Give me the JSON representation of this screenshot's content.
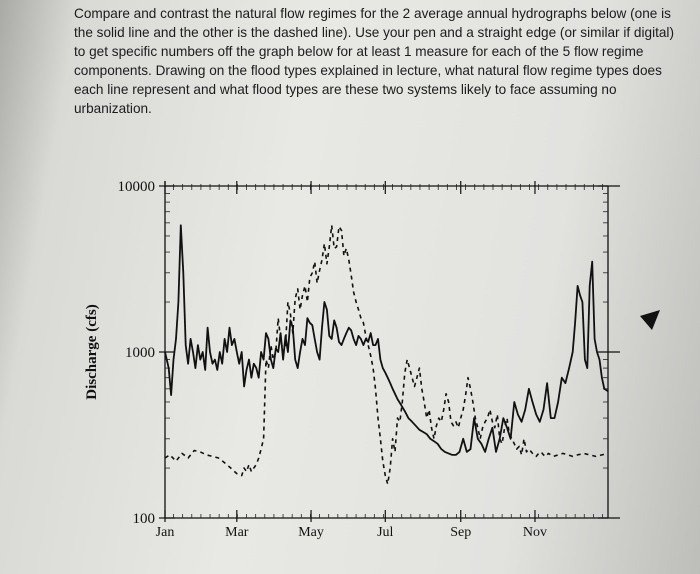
{
  "prompt_text": "Compare and contrast the natural flow regimes for the 2 average annual hydrographs below (one is the solid line and the other is the dashed line). Use your pen and a straight edge (or similar if digital) to get specific numbers off the graph below for at least 1 measure for each of the 5 flow regime components. Drawing on the flood types explained in lecture, what natural flow regime types does each line represent and what flood types are these two systems likely to face assuming no urbanization.",
  "chart_data": {
    "type": "line",
    "title": "",
    "xlabel": "",
    "ylabel": "Discharge (cfs)",
    "y_scale": "log",
    "ylim": [
      100,
      10000
    ],
    "y_ticks": [
      "10000",
      "1000",
      "100"
    ],
    "x_ticks": [
      "Jan",
      "Mar",
      "May",
      "Jul",
      "Sep",
      "Nov"
    ],
    "x_unit": "day of year",
    "x_tick_days": [
      1,
      60,
      121,
      182,
      244,
      305
    ],
    "xlim": [
      1,
      365
    ],
    "series": [
      {
        "style": "solid",
        "x": [
          1,
          4,
          6,
          8,
          10,
          12,
          14,
          16,
          18,
          20,
          22,
          24,
          26,
          28,
          30,
          32,
          34,
          36,
          38,
          40,
          42,
          44,
          46,
          48,
          50,
          52,
          54,
          56,
          58,
          60,
          62,
          64,
          66,
          68,
          70,
          72,
          74,
          76,
          78,
          80,
          82,
          84,
          86,
          88,
          90,
          92,
          94,
          96,
          98,
          100,
          102,
          104,
          106,
          108,
          110,
          112,
          114,
          116,
          118,
          120,
          122,
          124,
          126,
          128,
          130,
          132,
          134,
          136,
          138,
          140,
          142,
          144,
          146,
          148,
          150,
          152,
          154,
          156,
          158,
          160,
          162,
          164,
          166,
          168,
          170,
          172,
          174,
          176,
          178,
          180,
          182,
          184,
          186,
          188,
          190,
          192,
          195,
          198,
          201,
          204,
          207,
          210,
          213,
          216,
          219,
          222,
          225,
          228,
          231,
          234,
          237,
          240,
          243,
          246,
          249,
          252,
          255,
          258,
          261,
          264,
          267,
          270,
          273,
          276,
          279,
          282,
          285,
          288,
          291,
          294,
          297,
          300,
          303,
          306,
          309,
          312,
          315,
          318,
          321,
          324,
          327,
          330,
          333,
          336,
          338,
          340,
          342,
          344,
          346,
          348,
          350,
          352,
          354,
          356,
          358,
          360,
          362,
          365
        ],
        "values": [
          1000,
          800,
          550,
          900,
          1200,
          2000,
          5800,
          3000,
          1100,
          850,
          1200,
          1000,
          800,
          1100,
          900,
          1000,
          780,
          1400,
          1000,
          850,
          900,
          780,
          1000,
          850,
          1200,
          1000,
          1400,
          1100,
          1200,
          1000,
          850,
          1000,
          620,
          780,
          900,
          700,
          850,
          800,
          700,
          1000,
          900,
          1300,
          1200,
          900,
          800,
          1050,
          1000,
          1300,
          900,
          1250,
          1000,
          1550,
          1400,
          900,
          800,
          1000,
          1200,
          1100,
          1600,
          1500,
          1450,
          1200,
          1000,
          900,
          1400,
          2000,
          1800,
          1250,
          1200,
          1550,
          1400,
          1150,
          1100,
          1200,
          1300,
          1400,
          1350,
          1200,
          1100,
          1250,
          1200,
          1100,
          1200,
          1150,
          1300,
          1100,
          1100,
          1200,
          900,
          800,
          750,
          700,
          650,
          600,
          560,
          520,
          480,
          440,
          400,
          380,
          360,
          340,
          330,
          320,
          300,
          290,
          280,
          260,
          250,
          245,
          240,
          240,
          250,
          300,
          250,
          260,
          400,
          300,
          280,
          250,
          300,
          350,
          250,
          300,
          400,
          350,
          300,
          500,
          420,
          380,
          450,
          600,
          500,
          420,
          380,
          450,
          650,
          400,
          400,
          500,
          700,
          650,
          800,
          1000,
          1500,
          2500,
          2200,
          2000,
          900,
          800,
          2500,
          3500,
          1200,
          1000,
          900,
          700,
          600,
          580
        ]
      },
      {
        "style": "dashed",
        "x": [
          1,
          5,
          10,
          15,
          20,
          25,
          30,
          35,
          40,
          45,
          50,
          55,
          60,
          64,
          66,
          68,
          70,
          72,
          74,
          76,
          78,
          80,
          82,
          84,
          86,
          88,
          90,
          92,
          94,
          96,
          98,
          100,
          102,
          104,
          106,
          108,
          110,
          112,
          114,
          116,
          118,
          120,
          122,
          124,
          126,
          128,
          130,
          132,
          134,
          136,
          138,
          140,
          142,
          144,
          146,
          148,
          150,
          152,
          154,
          156,
          158,
          160,
          162,
          164,
          166,
          168,
          170,
          172,
          174,
          176,
          178,
          180,
          182,
          184,
          186,
          188,
          190,
          192,
          194,
          196,
          198,
          200,
          202,
          204,
          206,
          208,
          210,
          212,
          214,
          216,
          218,
          220,
          222,
          224,
          226,
          228,
          230,
          232,
          234,
          236,
          238,
          240,
          242,
          244,
          246,
          248,
          250,
          252,
          254,
          256,
          258,
          260,
          262,
          264,
          266,
          268,
          270,
          272,
          274,
          276,
          278,
          280,
          282,
          284,
          286,
          288,
          290,
          292,
          294,
          296,
          298,
          300,
          302,
          304,
          306,
          308,
          310,
          312,
          314,
          316,
          318,
          320,
          324,
          328,
          332,
          336,
          340,
          345,
          350,
          355,
          360,
          365
        ],
        "values": [
          230,
          240,
          220,
          245,
          230,
          255,
          250,
          240,
          235,
          230,
          215,
          200,
          185,
          180,
          200,
          190,
          210,
          190,
          200,
          210,
          230,
          260,
          300,
          900,
          800,
          1100,
          900,
          1000,
          1600,
          1200,
          1000,
          1100,
          2000,
          1700,
          1300,
          2100,
          2400,
          1800,
          2200,
          2500,
          2000,
          2800,
          3000,
          3500,
          2600,
          3100,
          3600,
          4500,
          3400,
          4300,
          5800,
          4200,
          4300,
          5700,
          5400,
          3800,
          4200,
          3600,
          2900,
          2300,
          2000,
          1800,
          1600,
          1500,
          1250,
          1100,
          950,
          800,
          600,
          400,
          300,
          220,
          180,
          160,
          200,
          300,
          250,
          400,
          380,
          500,
          750,
          900,
          800,
          700,
          620,
          700,
          800,
          600,
          500,
          400,
          450,
          350,
          300,
          360,
          400,
          380,
          450,
          560,
          500,
          380,
          360,
          380,
          350,
          400,
          450,
          550,
          700,
          600,
          500,
          400,
          350,
          300,
          350,
          380,
          400,
          450,
          380,
          350,
          420,
          300,
          280,
          350,
          400,
          320,
          300,
          280,
          260,
          270,
          240,
          300,
          250,
          260,
          250,
          240,
          235,
          245,
          250,
          240,
          235,
          245,
          240,
          235,
          240,
          245,
          240,
          235,
          240,
          245,
          240,
          235,
          240,
          245
        ]
      }
    ],
    "grid": false,
    "legend": "none"
  }
}
